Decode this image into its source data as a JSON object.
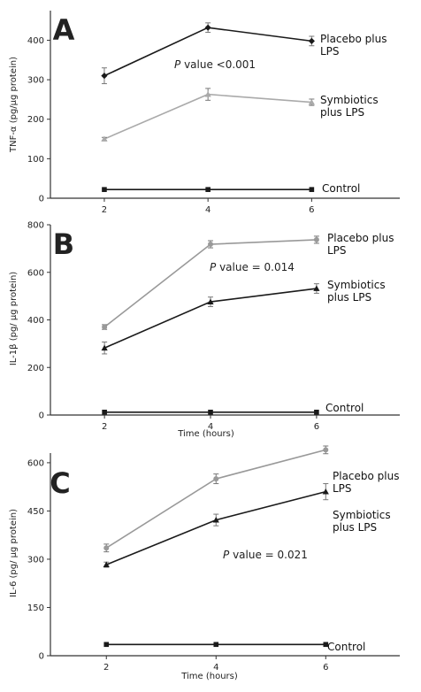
{
  "chart_data": [
    {
      "type": "line",
      "panel_label": "A",
      "y_label": "TNF-α (pg/μg protein)",
      "annotation_italic": "P",
      "annotation": " value <0.001",
      "x": [
        2,
        4,
        6
      ],
      "xlim": [
        0.96,
        7.7
      ],
      "xticks": [
        2,
        4,
        6
      ],
      "ylim": [
        0,
        475
      ],
      "yticks": [
        0,
        100,
        200,
        300,
        400
      ],
      "series": [
        {
          "name": "Placebo plus LPS",
          "color": "#1a1a1a",
          "marker": "diamond",
          "values": [
            310,
            432,
            398
          ],
          "errors": [
            20,
            12,
            12
          ]
        },
        {
          "name": "Symbiotics plus LPS",
          "color": "#aaaaaa",
          "marker": "triangle",
          "values": [
            150,
            263,
            243
          ],
          "errors": [
            4,
            15,
            8
          ]
        },
        {
          "name": "Control",
          "color": "#1a1a1a",
          "marker": "square",
          "values": [
            22,
            22,
            22
          ]
        }
      ]
    },
    {
      "type": "line",
      "panel_label": "B",
      "y_label": "IL-1β (pg/ μg protein)",
      "x_label": "Time (hours)",
      "annotation_italic": "P",
      "annotation": " value = 0.014",
      "x": [
        2,
        4,
        6
      ],
      "xlim": [
        0.98,
        7.57
      ],
      "xticks": [
        2,
        4,
        6
      ],
      "ylim": [
        0,
        800
      ],
      "yticks": [
        0,
        200,
        400,
        600,
        800
      ],
      "series": [
        {
          "name": "Placebo plus LPS",
          "color": "#999999",
          "marker": "circle",
          "values": [
            370,
            718,
            737
          ],
          "errors": [
            10,
            15,
            15
          ]
        },
        {
          "name": "Symbiotics plus LPS",
          "color": "#1a1a1a",
          "marker": "triangle",
          "values": [
            282,
            476,
            532
          ],
          "errors": [
            25,
            20,
            20
          ]
        },
        {
          "name": "Control",
          "color": "#1a1a1a",
          "marker": "square",
          "values": [
            12,
            12,
            12
          ]
        }
      ]
    },
    {
      "type": "line",
      "panel_label": "C",
      "y_label": "IL-6 (pg/ μg protein)",
      "x_label": "Time (hours)",
      "annotation_italic": "P",
      "annotation": " value = 0.021",
      "x": [
        2,
        4,
        6
      ],
      "xlim": [
        0.98,
        7.35
      ],
      "xticks": [
        2,
        4,
        6
      ],
      "ylim": [
        0,
        630
      ],
      "yticks": [
        0,
        150,
        300,
        450,
        600
      ],
      "series": [
        {
          "name": "Placebo plus LPS",
          "color": "#999999",
          "marker": "circle",
          "values": [
            335,
            550,
            640
          ],
          "errors": [
            12,
            15,
            12
          ]
        },
        {
          "name": "Symbiotics plus LPS",
          "color": "#1a1a1a",
          "marker": "triangle",
          "values": [
            283,
            422,
            510
          ],
          "errors": [
            8,
            18,
            25
          ]
        },
        {
          "name": "Control",
          "color": "#1a1a1a",
          "marker": "square",
          "values": [
            35,
            35,
            35
          ]
        }
      ]
    }
  ]
}
